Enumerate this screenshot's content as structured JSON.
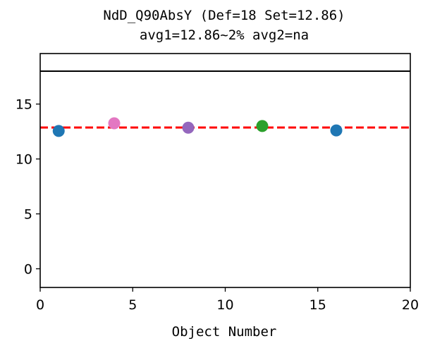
{
  "chart_data": {
    "type": "scatter",
    "title_line1": "NdD_Q90AbsY (Def=18 Set=12.86)",
    "title_line2": "avg1=12.86~2% avg2=na",
    "xlabel": "Object Number",
    "ylabel": "",
    "xlim": [
      0,
      20
    ],
    "ylim": [
      -1.7,
      19.6
    ],
    "x_ticks": [
      0,
      5,
      10,
      15,
      20
    ],
    "y_ticks": [
      0,
      5,
      10,
      15
    ],
    "x_tick_labels": [
      "0",
      "5",
      "10",
      "15",
      "20"
    ],
    "y_tick_labels": [
      "0",
      "5",
      "10",
      "15"
    ],
    "grid": false,
    "points": [
      {
        "x": 1,
        "y": 12.55,
        "color": "#1f77b4"
      },
      {
        "x": 4,
        "y": 13.25,
        "color": "#e377c2"
      },
      {
        "x": 8,
        "y": 12.85,
        "color": "#9467bd"
      },
      {
        "x": 12,
        "y": 13.0,
        "color": "#2ca02c"
      },
      {
        "x": 16,
        "y": 12.6,
        "color": "#1f77b4"
      }
    ],
    "reference_lines": [
      {
        "y": 18,
        "color": "#000000",
        "style": "solid"
      },
      {
        "y": 12.86,
        "color": "#ff0000",
        "style": "dashed"
      }
    ]
  }
}
